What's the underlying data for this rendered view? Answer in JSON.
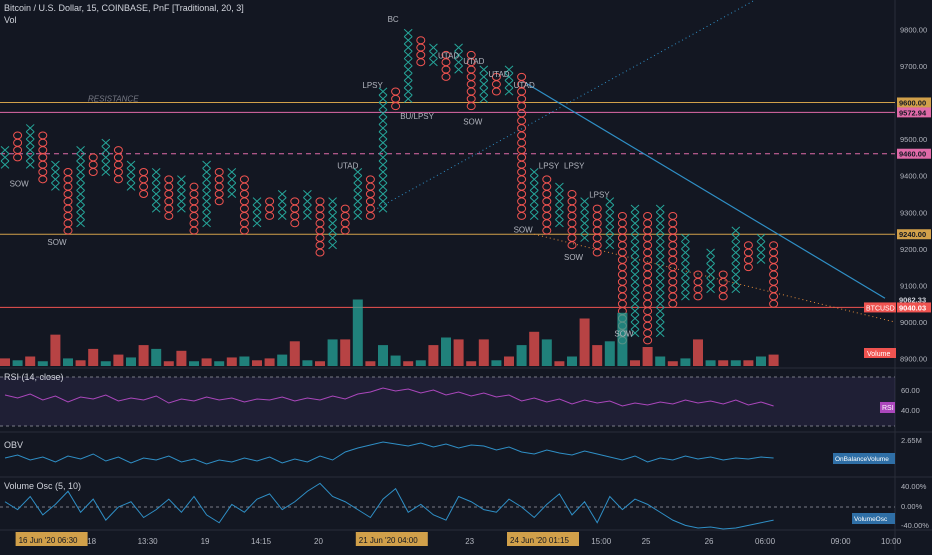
{
  "header": {
    "symbol_line": "Bitcoin / U.S. Dollar, 15, COINBASE, PnF [Traditional, 20, 3]",
    "vol_label": "Vol"
  },
  "colors": {
    "background": "#131722",
    "x_column": "#26a69a",
    "o_column": "#ef5350",
    "resistance_line": "#d1a04a",
    "pink_line": "#e06aa8",
    "trend_line": "#2f8fc6",
    "rsi_line": "#ab47bc",
    "obv_line": "#2f8fc6",
    "volosc_line": "#2f8fc6"
  },
  "price_axis": {
    "ticks": [
      "9800.00",
      "9700.00",
      "9600.00",
      "9500.00",
      "9400.00",
      "9300.00",
      "9200.00",
      "9100.00",
      "9000.00",
      "8900.00"
    ],
    "range": [
      8880,
      9880
    ],
    "badges": [
      {
        "label": "9600.00",
        "value": 9600,
        "color": "#d1a04a",
        "text_color": "#131722"
      },
      {
        "label": "9572.94",
        "value": 9572.94,
        "color": "#e06aa8",
        "text_color": "#131722"
      },
      {
        "label": "9460.00",
        "value": 9460,
        "color": "#e06aa8",
        "text_color": "#131722"
      },
      {
        "label": "9240.00",
        "value": 9240,
        "color": "#d1a04a",
        "text_color": "#131722"
      },
      {
        "label": "9062.33",
        "value": 9062.33,
        "color": "#131722",
        "text_color": "#d1d4dc"
      },
      {
        "label": "9040.03",
        "value": 9040.03,
        "color": "#ef5350",
        "text_color": "#ffffff"
      }
    ],
    "btc_badge": "BTCUSD",
    "volume_badge": "Volume"
  },
  "levels": [
    {
      "value": 9600,
      "style": "solid",
      "color": "#d1a04a",
      "label": "RESISTANCE"
    },
    {
      "value": 9572.94,
      "style": "solid",
      "color": "#e06aa8",
      "label": ""
    },
    {
      "value": 9460,
      "style": "dashed",
      "color": "#e06aa8",
      "label": ""
    },
    {
      "value": 9240,
      "style": "solid",
      "color": "#d1a04a",
      "label": ""
    },
    {
      "value": 9040.03,
      "style": "solid",
      "color": "#ef5350",
      "label": ""
    }
  ],
  "annotations": [
    {
      "text": "SOW",
      "col": 1,
      "price": 9370
    },
    {
      "text": "SOW",
      "col": 4,
      "price": 9210
    },
    {
      "text": "UTAD",
      "col": 27,
      "price": 9420
    },
    {
      "text": "LPSY",
      "col": 29,
      "price": 9640
    },
    {
      "text": "BC",
      "col": 31,
      "price": 9820
    },
    {
      "text": "BU/LPSY",
      "col": 32,
      "price": 9555
    },
    {
      "text": "UTAD",
      "col": 35,
      "price": 9720
    },
    {
      "text": "UTAD",
      "col": 37,
      "price": 9705
    },
    {
      "text": "SOW",
      "col": 37,
      "price": 9540
    },
    {
      "text": "UTAD",
      "col": 39,
      "price": 9670
    },
    {
      "text": "UTAD",
      "col": 41,
      "price": 9640
    },
    {
      "text": "SOW",
      "col": 41,
      "price": 9245
    },
    {
      "text": "LPSY",
      "col": 43,
      "price": 9420
    },
    {
      "text": "LPSY",
      "col": 45,
      "price": 9420
    },
    {
      "text": "LPSY",
      "col": 47,
      "price": 9340
    },
    {
      "text": "SOW",
      "col": 45,
      "price": 9170
    },
    {
      "text": "SOW",
      "col": 49,
      "price": 8960
    }
  ],
  "columns": [
    {
      "t": "X",
      "lo": 9420,
      "hi": 9460
    },
    {
      "t": "O",
      "lo": 9440,
      "hi": 9500
    },
    {
      "t": "X",
      "lo": 9420,
      "hi": 9520
    },
    {
      "t": "O",
      "lo": 9380,
      "hi": 9500
    },
    {
      "t": "X",
      "lo": 9360,
      "hi": 9420
    },
    {
      "t": "O",
      "lo": 9240,
      "hi": 9400
    },
    {
      "t": "X",
      "lo": 9260,
      "hi": 9460
    },
    {
      "t": "O",
      "lo": 9400,
      "hi": 9440
    },
    {
      "t": "X",
      "lo": 9400,
      "hi": 9480
    },
    {
      "t": "O",
      "lo": 9380,
      "hi": 9460
    },
    {
      "t": "X",
      "lo": 9360,
      "hi": 9420
    },
    {
      "t": "O",
      "lo": 9340,
      "hi": 9400
    },
    {
      "t": "X",
      "lo": 9300,
      "hi": 9400
    },
    {
      "t": "O",
      "lo": 9280,
      "hi": 9380
    },
    {
      "t": "X",
      "lo": 9300,
      "hi": 9380
    },
    {
      "t": "O",
      "lo": 9240,
      "hi": 9360
    },
    {
      "t": "X",
      "lo": 9260,
      "hi": 9420
    },
    {
      "t": "O",
      "lo": 9320,
      "hi": 9400
    },
    {
      "t": "X",
      "lo": 9340,
      "hi": 9400
    },
    {
      "t": "O",
      "lo": 9240,
      "hi": 9380
    },
    {
      "t": "X",
      "lo": 9260,
      "hi": 9320
    },
    {
      "t": "O",
      "lo": 9280,
      "hi": 9320
    },
    {
      "t": "X",
      "lo": 9280,
      "hi": 9340
    },
    {
      "t": "O",
      "lo": 9260,
      "hi": 9320
    },
    {
      "t": "X",
      "lo": 9280,
      "hi": 9340
    },
    {
      "t": "O",
      "lo": 9180,
      "hi": 9320
    },
    {
      "t": "X",
      "lo": 9200,
      "hi": 9320
    },
    {
      "t": "O",
      "lo": 9240,
      "hi": 9300
    },
    {
      "t": "X",
      "lo": 9280,
      "hi": 9400
    },
    {
      "t": "O",
      "lo": 9280,
      "hi": 9380
    },
    {
      "t": "X",
      "lo": 9300,
      "hi": 9620
    },
    {
      "t": "O",
      "lo": 9580,
      "hi": 9620
    },
    {
      "t": "X",
      "lo": 9600,
      "hi": 9780
    },
    {
      "t": "O",
      "lo": 9700,
      "hi": 9760
    },
    {
      "t": "X",
      "lo": 9700,
      "hi": 9740
    },
    {
      "t": "O",
      "lo": 9660,
      "hi": 9720
    },
    {
      "t": "X",
      "lo": 9680,
      "hi": 9740
    },
    {
      "t": "O",
      "lo": 9580,
      "hi": 9720
    },
    {
      "t": "X",
      "lo": 9600,
      "hi": 9680
    },
    {
      "t": "O",
      "lo": 9620,
      "hi": 9660
    },
    {
      "t": "X",
      "lo": 9620,
      "hi": 9680
    },
    {
      "t": "O",
      "lo": 9280,
      "hi": 9660
    },
    {
      "t": "X",
      "lo": 9280,
      "hi": 9400
    },
    {
      "t": "O",
      "lo": 9240,
      "hi": 9380
    },
    {
      "t": "X",
      "lo": 9260,
      "hi": 9360
    },
    {
      "t": "O",
      "lo": 9200,
      "hi": 9340
    },
    {
      "t": "X",
      "lo": 9220,
      "hi": 9320
    },
    {
      "t": "O",
      "lo": 9180,
      "hi": 9300
    },
    {
      "t": "X",
      "lo": 9200,
      "hi": 9320
    },
    {
      "t": "O",
      "lo": 8940,
      "hi": 9280
    },
    {
      "t": "X",
      "lo": 8960,
      "hi": 9300
    },
    {
      "t": "O",
      "lo": 8940,
      "hi": 9280
    },
    {
      "t": "X",
      "lo": 8960,
      "hi": 9300
    },
    {
      "t": "O",
      "lo": 9040,
      "hi": 9280
    },
    {
      "t": "X",
      "lo": 9060,
      "hi": 9220
    },
    {
      "t": "O",
      "lo": 9060,
      "hi": 9120
    },
    {
      "t": "X",
      "lo": 9080,
      "hi": 9180
    },
    {
      "t": "O",
      "lo": 9060,
      "hi": 9120
    },
    {
      "t": "X",
      "lo": 9080,
      "hi": 9240
    },
    {
      "t": "O",
      "lo": 9140,
      "hi": 9200
    },
    {
      "t": "X",
      "lo": 9160,
      "hi": 9220
    },
    {
      "t": "O",
      "lo": 9040,
      "hi": 9200
    }
  ],
  "volume": [
    {
      "v": 0.08,
      "c": "O"
    },
    {
      "v": 0.06,
      "c": "X"
    },
    {
      "v": 0.1,
      "c": "O"
    },
    {
      "v": 0.05,
      "c": "X"
    },
    {
      "v": 0.33,
      "c": "O"
    },
    {
      "v": 0.08,
      "c": "X"
    },
    {
      "v": 0.06,
      "c": "O"
    },
    {
      "v": 0.18,
      "c": "O"
    },
    {
      "v": 0.05,
      "c": "X"
    },
    {
      "v": 0.12,
      "c": "O"
    },
    {
      "v": 0.09,
      "c": "X"
    },
    {
      "v": 0.22,
      "c": "O"
    },
    {
      "v": 0.18,
      "c": "X"
    },
    {
      "v": 0.05,
      "c": "O"
    },
    {
      "v": 0.16,
      "c": "O"
    },
    {
      "v": 0.05,
      "c": "X"
    },
    {
      "v": 0.08,
      "c": "O"
    },
    {
      "v": 0.05,
      "c": "X"
    },
    {
      "v": 0.09,
      "c": "O"
    },
    {
      "v": 0.1,
      "c": "X"
    },
    {
      "v": 0.06,
      "c": "O"
    },
    {
      "v": 0.08,
      "c": "O"
    },
    {
      "v": 0.12,
      "c": "X"
    },
    {
      "v": 0.26,
      "c": "O"
    },
    {
      "v": 0.06,
      "c": "X"
    },
    {
      "v": 0.05,
      "c": "O"
    },
    {
      "v": 0.28,
      "c": "X"
    },
    {
      "v": 0.28,
      "c": "O"
    },
    {
      "v": 0.7,
      "c": "X"
    },
    {
      "v": 0.05,
      "c": "O"
    },
    {
      "v": 0.22,
      "c": "X"
    },
    {
      "v": 0.11,
      "c": "X"
    },
    {
      "v": 0.05,
      "c": "O"
    },
    {
      "v": 0.06,
      "c": "X"
    },
    {
      "v": 0.22,
      "c": "O"
    },
    {
      "v": 0.3,
      "c": "X"
    },
    {
      "v": 0.28,
      "c": "O"
    },
    {
      "v": 0.05,
      "c": "O"
    },
    {
      "v": 0.28,
      "c": "O"
    },
    {
      "v": 0.06,
      "c": "X"
    },
    {
      "v": 0.1,
      "c": "O"
    },
    {
      "v": 0.22,
      "c": "X"
    },
    {
      "v": 0.36,
      "c": "O"
    },
    {
      "v": 0.28,
      "c": "X"
    },
    {
      "v": 0.05,
      "c": "O"
    },
    {
      "v": 0.1,
      "c": "X"
    },
    {
      "v": 0.5,
      "c": "O"
    },
    {
      "v": 0.22,
      "c": "O"
    },
    {
      "v": 0.26,
      "c": "X"
    },
    {
      "v": 0.56,
      "c": "X"
    },
    {
      "v": 0.06,
      "c": "O"
    },
    {
      "v": 0.2,
      "c": "O"
    },
    {
      "v": 0.1,
      "c": "X"
    },
    {
      "v": 0.05,
      "c": "O"
    },
    {
      "v": 0.08,
      "c": "X"
    },
    {
      "v": 0.28,
      "c": "O"
    },
    {
      "v": 0.06,
      "c": "X"
    },
    {
      "v": 0.06,
      "c": "O"
    },
    {
      "v": 0.06,
      "c": "X"
    },
    {
      "v": 0.06,
      "c": "O"
    },
    {
      "v": 0.1,
      "c": "X"
    },
    {
      "v": 0.12,
      "c": "O"
    }
  ],
  "rsi": {
    "label": "RSI (14, close)",
    "ticks": [
      "60.00",
      "40.00"
    ],
    "badge": "RSI",
    "values": [
      55,
      52,
      56,
      50,
      54,
      48,
      53,
      51,
      55,
      49,
      52,
      50,
      54,
      47,
      51,
      49,
      53,
      50,
      52,
      48,
      51,
      50,
      53,
      49,
      52,
      50,
      54,
      51,
      56,
      58,
      62,
      59,
      61,
      57,
      60,
      55,
      58,
      54,
      57,
      53,
      55,
      49,
      52,
      48,
      51,
      46,
      50,
      47,
      49,
      44,
      47,
      45,
      48,
      46,
      50,
      47,
      49,
      46,
      50,
      45,
      48,
      44
    ]
  },
  "obv": {
    "label": "OBV",
    "ticks": [
      "2.65M"
    ],
    "badge": "OnBalanceVolume",
    "values": [
      42,
      45,
      40,
      43,
      38,
      44,
      41,
      46,
      39,
      43,
      37,
      42,
      40,
      44,
      38,
      41,
      36,
      40,
      38,
      42,
      39,
      43,
      37,
      41,
      38,
      44,
      40,
      48,
      52,
      55,
      58,
      56,
      54,
      57,
      53,
      56,
      52,
      55,
      54,
      50,
      53,
      48,
      46,
      50,
      47,
      45,
      49,
      46,
      43,
      40,
      44,
      38,
      42,
      40,
      44,
      41,
      43,
      40,
      42,
      41,
      43,
      42
    ]
  },
  "volosc": {
    "label": "Volume Osc (5, 10)",
    "ticks": [
      "40.00%",
      "0.00%",
      "-40.00%"
    ],
    "badge": "VolumeOsc",
    "values": [
      10,
      -5,
      20,
      -15,
      5,
      30,
      -10,
      15,
      -25,
      0,
      10,
      -20,
      -5,
      15,
      -10,
      20,
      -15,
      -30,
      5,
      -10,
      15,
      25,
      -5,
      10,
      30,
      45,
      20,
      10,
      -5,
      -20,
      15,
      35,
      -10,
      5,
      -15,
      -25,
      20,
      10,
      -5,
      -10,
      15,
      0,
      -20,
      5,
      25,
      -15,
      10,
      -30,
      20,
      -5,
      15,
      5,
      -10,
      -25,
      -35,
      -40,
      -38,
      -42,
      -40,
      -35,
      -30,
      -25
    ]
  },
  "time_axis": {
    "ticks": [
      {
        "label": "18",
        "col": 7
      },
      {
        "label": "13:30",
        "col": 11
      },
      {
        "label": "19",
        "col": 16
      },
      {
        "label": "14:15",
        "col": 20
      },
      {
        "label": "20",
        "col": 25
      },
      {
        "label": "23",
        "col": 37
      },
      {
        "label": "15:00",
        "col": 47
      },
      {
        "label": "25",
        "col": 51
      },
      {
        "label": "26",
        "col": 56
      },
      {
        "label": "06:00",
        "col": 60
      },
      {
        "label": "09:00",
        "col": 66
      },
      {
        "label": "10:00",
        "col": 70
      }
    ],
    "highlights": [
      {
        "label": "16 Jun '20  06:30",
        "col": 1
      },
      {
        "label": "21 Jun '20  04:00",
        "col": 28
      },
      {
        "label": "24 Jun '20  01:15",
        "col": 40
      }
    ]
  }
}
